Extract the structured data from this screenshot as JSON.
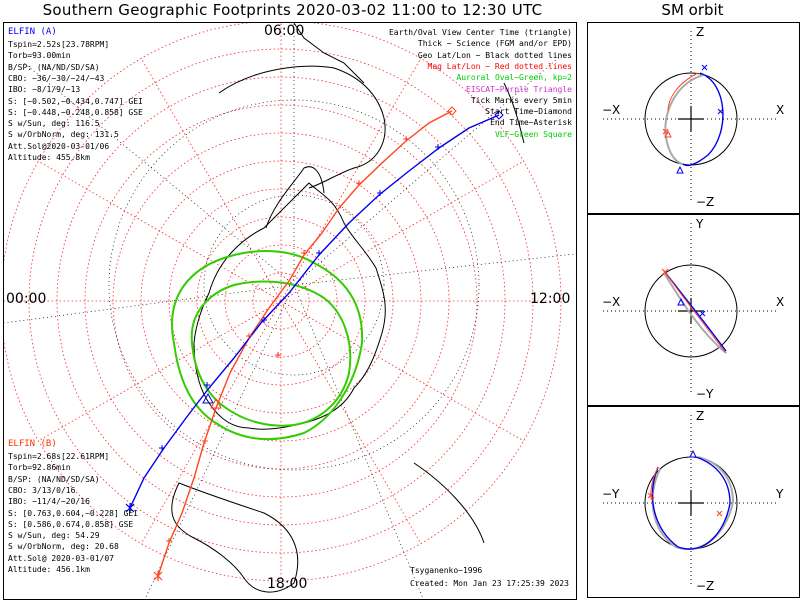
{
  "title": "Southern Geographic Footprints 2020-03-02 11:00 to 12:30 UTC",
  "sm_title": "SM orbit",
  "mlt_labels": {
    "top": "06:00",
    "left": "00:00",
    "right": "12:00",
    "bottom": "18:00"
  },
  "elfin_a": {
    "name": "ELFIN (A)",
    "color": "#0000ff",
    "lines": [
      "Tspin=2.52s[23.78RPM]",
      "Torb=93.00min",
      "B/SP: (NA/ND/SD/SA)",
      "CBO: −36/−30/−24/−43",
      "IBO: −8/1/9/−13",
      "S: [−0.502,−0.434,0.747] GEI",
      "S: [−0.448,−0.248,0.858] GSE",
      "S w/Sun, deg: 116.5",
      "S w/OrbNorm, deg: 131.5",
      "Att.Sol@2020-03-01/06",
      "Altitude: 455.8km"
    ]
  },
  "elfin_b": {
    "name": "ELFIN (B)",
    "color": "#ff3300",
    "lines": [
      "Tspin=2.68s[22.61RPM]",
      "Torb=92.86min",
      "B/SP: (NA/ND/SD/SA)",
      "CBO: 3/13/0/16",
      "IBO: −11/4/−20/16",
      "S: [0.763,0.604,−0.228] GEI",
      "S: [0.586,0.674,0.858] GSE",
      "S w/Sun, deg: 54.29",
      "S w/OrbNorm, deg: 20.68",
      "Att.Sol@ 2020-03-01/07",
      "Altitude: 456.1km"
    ]
  },
  "legend": [
    {
      "text": "Earth/Oval View Center Time (triangle)",
      "color": "#000000"
    },
    {
      "text": "Thick − Science (FGM and/or EPD)",
      "color": "#000000"
    },
    {
      "text": "Geo Lat/Lon − Black dotted lines",
      "color": "#000000"
    },
    {
      "text": "Mag Lat/Lon − Red dotted lines",
      "color": "#ff0000"
    },
    {
      "text": "Auroral Oval−Green, kp=2",
      "color": "#00cc00"
    },
    {
      "text": "EISCAT−Purple Triangle",
      "color": "#cc33cc"
    },
    {
      "text": "Tick Marks every 5min",
      "color": "#000000"
    },
    {
      "text": "Start Time−Diamond",
      "color": "#000000"
    },
    {
      "text": "End Time−Asterisk",
      "color": "#000000"
    },
    {
      "text": "VLF−Green Square",
      "color": "#00cc00"
    }
  ],
  "footer": {
    "model": "Tsyganenko−1996",
    "created": "Created: Mon Jan 23 17:25:39 2023"
  },
  "sm_panels": [
    {
      "top": "Z",
      "bottom": "−Z",
      "left": "−X",
      "right": "X"
    },
    {
      "top": "Y",
      "bottom": "−Y",
      "left": "−X",
      "right": "X"
    },
    {
      "top": "Z",
      "bottom": "−Z",
      "left": "−Y",
      "right": "Y"
    }
  ],
  "colors": {
    "aurora": "#33cc00",
    "geo_grid": "#000000",
    "mag_grid": "#ff0000",
    "orbit_gray": "#aaaaaa"
  }
}
